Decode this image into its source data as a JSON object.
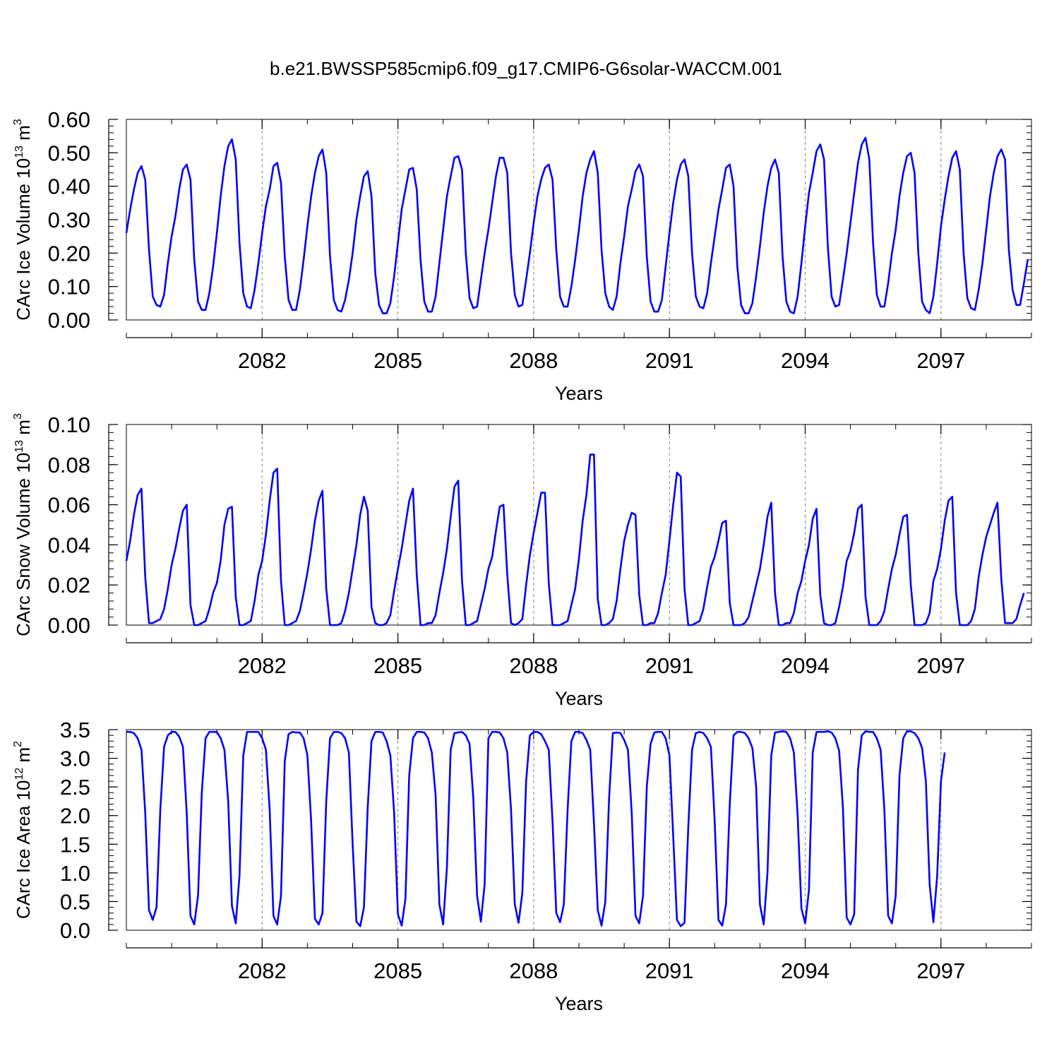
{
  "title": "b.e21.BWSSP585cmip6.f09_g17.CMIP6-G6solar-WACCM.001",
  "colors": {
    "series": "#0000ff",
    "axis": "#000000",
    "gridline": "#808080"
  },
  "chart_data": [
    {
      "type": "line",
      "xlabel": "Years",
      "ylabel": "CArc Ice Volume 10^13 m^3",
      "ylabel_parts": {
        "text": "CArc Ice Volume 10",
        "exp1": "13",
        "unit": " m",
        "exp2": "3"
      },
      "xlim": [
        2079.0,
        2099.0
      ],
      "ylim": [
        0.0,
        0.6
      ],
      "xticks": [
        2082,
        2085,
        2088,
        2091,
        2094,
        2097
      ],
      "xtick_labels": [
        "2082",
        "2085",
        "2088",
        "2091",
        "2094",
        "2097"
      ],
      "yticks": [
        0.0,
        0.1,
        0.2,
        0.3,
        0.4,
        0.5,
        0.6
      ],
      "ytick_labels": [
        "0.00",
        "0.10",
        "0.20",
        "0.30",
        "0.40",
        "0.50",
        "0.60"
      ],
      "yminor": 0.02,
      "vgrid_dashed": true,
      "x_start": 2079.0,
      "x_step_months": 1,
      "series": [
        {
          "values": [
            0.26,
            0.33,
            0.39,
            0.44,
            0.46,
            0.42,
            0.21,
            0.07,
            0.045,
            0.04,
            0.075,
            0.17,
            0.25,
            0.31,
            0.39,
            0.45,
            0.465,
            0.42,
            0.18,
            0.055,
            0.03,
            0.03,
            0.08,
            0.16,
            0.26,
            0.37,
            0.46,
            0.52,
            0.54,
            0.48,
            0.23,
            0.08,
            0.04,
            0.035,
            0.09,
            0.17,
            0.26,
            0.34,
            0.39,
            0.46,
            0.47,
            0.41,
            0.19,
            0.06,
            0.03,
            0.03,
            0.09,
            0.18,
            0.28,
            0.37,
            0.44,
            0.49,
            0.51,
            0.44,
            0.19,
            0.06,
            0.03,
            0.025,
            0.06,
            0.12,
            0.2,
            0.3,
            0.37,
            0.43,
            0.445,
            0.37,
            0.14,
            0.045,
            0.02,
            0.02,
            0.05,
            0.13,
            0.23,
            0.33,
            0.39,
            0.45,
            0.455,
            0.39,
            0.18,
            0.055,
            0.025,
            0.025,
            0.07,
            0.17,
            0.27,
            0.37,
            0.43,
            0.485,
            0.49,
            0.45,
            0.2,
            0.065,
            0.035,
            0.04,
            0.12,
            0.2,
            0.27,
            0.35,
            0.43,
            0.485,
            0.485,
            0.44,
            0.2,
            0.075,
            0.04,
            0.045,
            0.12,
            0.2,
            0.29,
            0.37,
            0.42,
            0.455,
            0.465,
            0.42,
            0.21,
            0.07,
            0.04,
            0.04,
            0.1,
            0.18,
            0.27,
            0.37,
            0.44,
            0.48,
            0.505,
            0.44,
            0.21,
            0.08,
            0.04,
            0.03,
            0.07,
            0.17,
            0.25,
            0.34,
            0.39,
            0.445,
            0.465,
            0.43,
            0.19,
            0.055,
            0.025,
            0.025,
            0.06,
            0.16,
            0.26,
            0.35,
            0.42,
            0.465,
            0.48,
            0.43,
            0.2,
            0.07,
            0.04,
            0.035,
            0.08,
            0.17,
            0.25,
            0.33,
            0.39,
            0.455,
            0.465,
            0.4,
            0.16,
            0.045,
            0.02,
            0.02,
            0.05,
            0.13,
            0.22,
            0.32,
            0.4,
            0.455,
            0.48,
            0.44,
            0.19,
            0.055,
            0.025,
            0.02,
            0.07,
            0.17,
            0.28,
            0.38,
            0.44,
            0.505,
            0.525,
            0.48,
            0.22,
            0.07,
            0.04,
            0.045,
            0.12,
            0.2,
            0.29,
            0.38,
            0.47,
            0.525,
            0.545,
            0.48,
            0.23,
            0.075,
            0.04,
            0.04,
            0.11,
            0.2,
            0.27,
            0.37,
            0.44,
            0.49,
            0.5,
            0.44,
            0.2,
            0.055,
            0.03,
            0.02,
            0.07,
            0.17,
            0.28,
            0.36,
            0.43,
            0.485,
            0.505,
            0.45,
            0.2,
            0.065,
            0.035,
            0.03,
            0.09,
            0.17,
            0.27,
            0.37,
            0.44,
            0.49,
            0.51,
            0.48,
            0.21,
            0.09,
            0.045,
            0.045,
            0.11,
            0.18
          ]
        }
      ]
    },
    {
      "type": "line",
      "xlabel": "Years",
      "ylabel": "CArc Snow Volume 10^13 m^3",
      "ylabel_parts": {
        "text": "CArc Snow Volume 10",
        "exp1": "13",
        "unit": " m",
        "exp2": "3"
      },
      "xlim": [
        2079.0,
        2099.0
      ],
      "ylim": [
        0.0,
        0.1
      ],
      "xticks": [
        2082,
        2085,
        2088,
        2091,
        2094,
        2097
      ],
      "xtick_labels": [
        "2082",
        "2085",
        "2088",
        "2091",
        "2094",
        "2097"
      ],
      "yticks": [
        0.0,
        0.02,
        0.04,
        0.06,
        0.08,
        0.1
      ],
      "ytick_labels": [
        "0.00",
        "0.02",
        "0.04",
        "0.06",
        "0.08",
        "0.10"
      ],
      "yminor": 0.004,
      "vgrid_dashed": true,
      "x_start": 2079.0,
      "x_step_months": 1,
      "series": [
        {
          "values": [
            0.032,
            0.042,
            0.055,
            0.065,
            0.068,
            0.024,
            0.001,
            0.001,
            0.002,
            0.003,
            0.008,
            0.018,
            0.03,
            0.038,
            0.048,
            0.057,
            0.06,
            0.01,
            0.0,
            0.0,
            0.001,
            0.002,
            0.008,
            0.016,
            0.021,
            0.032,
            0.05,
            0.058,
            0.059,
            0.014,
            0.0,
            0.0,
            0.001,
            0.002,
            0.012,
            0.025,
            0.032,
            0.045,
            0.062,
            0.076,
            0.078,
            0.022,
            0.0,
            0.0,
            0.001,
            0.002,
            0.007,
            0.016,
            0.026,
            0.038,
            0.052,
            0.062,
            0.067,
            0.018,
            0.0,
            0.0,
            0.0,
            0.001,
            0.007,
            0.016,
            0.028,
            0.04,
            0.055,
            0.064,
            0.057,
            0.009,
            0.001,
            0.0,
            0.0,
            0.001,
            0.005,
            0.017,
            0.028,
            0.038,
            0.05,
            0.062,
            0.068,
            0.025,
            0.0,
            0.0,
            0.001,
            0.001,
            0.005,
            0.016,
            0.026,
            0.038,
            0.054,
            0.069,
            0.072,
            0.022,
            0.0,
            0.0,
            0.001,
            0.002,
            0.01,
            0.018,
            0.028,
            0.034,
            0.047,
            0.059,
            0.06,
            0.025,
            0.001,
            0.0,
            0.001,
            0.003,
            0.02,
            0.035,
            0.046,
            0.056,
            0.066,
            0.066,
            0.021,
            0.0,
            0.0,
            0.0,
            0.001,
            0.002,
            0.01,
            0.018,
            0.033,
            0.052,
            0.065,
            0.085,
            0.085,
            0.013,
            0.0,
            0.0,
            0.001,
            0.003,
            0.012,
            0.028,
            0.042,
            0.05,
            0.056,
            0.055,
            0.015,
            0.0,
            0.0,
            0.001,
            0.001,
            0.006,
            0.016,
            0.025,
            0.042,
            0.06,
            0.076,
            0.074,
            0.018,
            0.0,
            0.0,
            0.001,
            0.002,
            0.008,
            0.019,
            0.029,
            0.034,
            0.042,
            0.051,
            0.052,
            0.011,
            0.0,
            0.0,
            0.0,
            0.001,
            0.004,
            0.012,
            0.02,
            0.028,
            0.04,
            0.054,
            0.061,
            0.016,
            0.0,
            0.0,
            0.001,
            0.001,
            0.006,
            0.016,
            0.022,
            0.032,
            0.04,
            0.053,
            0.058,
            0.015,
            0.001,
            0.0,
            0.0,
            0.001,
            0.009,
            0.019,
            0.032,
            0.037,
            0.046,
            0.058,
            0.06,
            0.014,
            0.0,
            0.0,
            0.0,
            0.002,
            0.007,
            0.018,
            0.028,
            0.035,
            0.045,
            0.054,
            0.055,
            0.02,
            0.0,
            0.0,
            0.0,
            0.001,
            0.006,
            0.022,
            0.028,
            0.038,
            0.052,
            0.062,
            0.064,
            0.016,
            0.0,
            0.0,
            0.0,
            0.002,
            0.008,
            0.024,
            0.035,
            0.044,
            0.05,
            0.056,
            0.061,
            0.023,
            0.001,
            0.001,
            0.001,
            0.003,
            0.01,
            0.016
          ]
        }
      ]
    },
    {
      "type": "line",
      "xlabel": "Years",
      "ylabel": "CArc Ice Area 10^12 m^2",
      "ylabel_parts": {
        "text": "CArc Ice Area 10",
        "exp1": "12",
        "unit": " m",
        "exp2": "2"
      },
      "xlim": [
        2079.0,
        2099.0
      ],
      "ylim": [
        0.0,
        3.5
      ],
      "xticks": [
        2082,
        2085,
        2088,
        2091,
        2094,
        2097
      ],
      "xtick_labels": [
        "2082",
        "2085",
        "2088",
        "2091",
        "2094",
        "2097"
      ],
      "yticks": [
        0.0,
        0.5,
        1.0,
        1.5,
        2.0,
        2.5,
        3.0,
        3.5
      ],
      "ytick_labels": [
        "0.0",
        "0.5",
        "1.0",
        "1.5",
        "2.0",
        "2.5",
        "3.0",
        "3.5"
      ],
      "yminor": 0.1,
      "vgrid_dashed": true,
      "x_start": 2079.0,
      "x_step_months": 1,
      "series": [
        {
          "values": [
            3.46,
            3.46,
            3.44,
            3.35,
            3.15,
            2.05,
            0.35,
            0.18,
            0.4,
            2.1,
            3.2,
            3.4,
            3.46,
            3.46,
            3.38,
            3.2,
            2.05,
            0.25,
            0.1,
            0.6,
            2.4,
            3.35,
            3.46,
            3.46,
            3.46,
            3.35,
            3.15,
            2.25,
            0.42,
            0.12,
            0.95,
            3.05,
            3.46,
            3.46,
            3.46,
            3.46,
            3.35,
            3.15,
            2.1,
            0.25,
            0.1,
            0.6,
            2.95,
            3.42,
            3.46,
            3.45,
            3.45,
            3.35,
            3.05,
            1.9,
            0.2,
            0.1,
            0.3,
            2.25,
            3.35,
            3.46,
            3.46,
            3.44,
            3.35,
            3.1,
            1.5,
            0.15,
            0.07,
            0.4,
            2.15,
            3.3,
            3.46,
            3.46,
            3.45,
            3.3,
            3.05,
            2.05,
            0.28,
            0.08,
            0.55,
            2.7,
            3.35,
            3.46,
            3.46,
            3.45,
            3.35,
            3.1,
            2.35,
            0.45,
            0.1,
            1.1,
            3.15,
            3.44,
            3.45,
            3.46,
            3.4,
            3.25,
            2.3,
            0.6,
            0.15,
            0.8,
            3.35,
            3.46,
            3.46,
            3.45,
            3.35,
            3.1,
            2.1,
            0.45,
            0.13,
            0.65,
            2.6,
            3.4,
            3.46,
            3.46,
            3.42,
            3.3,
            3.15,
            1.9,
            0.3,
            0.14,
            0.45,
            2.1,
            3.3,
            3.46,
            3.46,
            3.44,
            3.32,
            3.15,
            1.85,
            0.35,
            0.08,
            0.5,
            2.3,
            3.44,
            3.45,
            3.44,
            3.32,
            3.15,
            2.05,
            0.25,
            0.12,
            0.6,
            2.5,
            3.25,
            3.45,
            3.46,
            3.46,
            3.35,
            3.05,
            1.65,
            0.18,
            0.07,
            0.13,
            1.8,
            3.15,
            3.44,
            3.46,
            3.44,
            3.35,
            3.2,
            1.9,
            0.18,
            0.08,
            0.45,
            2.2,
            3.4,
            3.46,
            3.46,
            3.44,
            3.35,
            3.18,
            2.5,
            0.45,
            0.1,
            1.0,
            3.05,
            3.45,
            3.46,
            3.47,
            3.46,
            3.35,
            3.1,
            2.0,
            0.38,
            0.12,
            0.7,
            3.1,
            3.46,
            3.46,
            3.46,
            3.47,
            3.45,
            3.35,
            3.13,
            2.15,
            0.22,
            0.1,
            0.28,
            2.8,
            3.4,
            3.47,
            3.46,
            3.46,
            3.35,
            3.15,
            2.1,
            0.25,
            0.12,
            0.6,
            2.7,
            3.35,
            3.47,
            3.47,
            3.44,
            3.35,
            3.18,
            2.6,
            0.8,
            0.14,
            0.95,
            2.6,
            3.1
          ]
        }
      ]
    }
  ]
}
